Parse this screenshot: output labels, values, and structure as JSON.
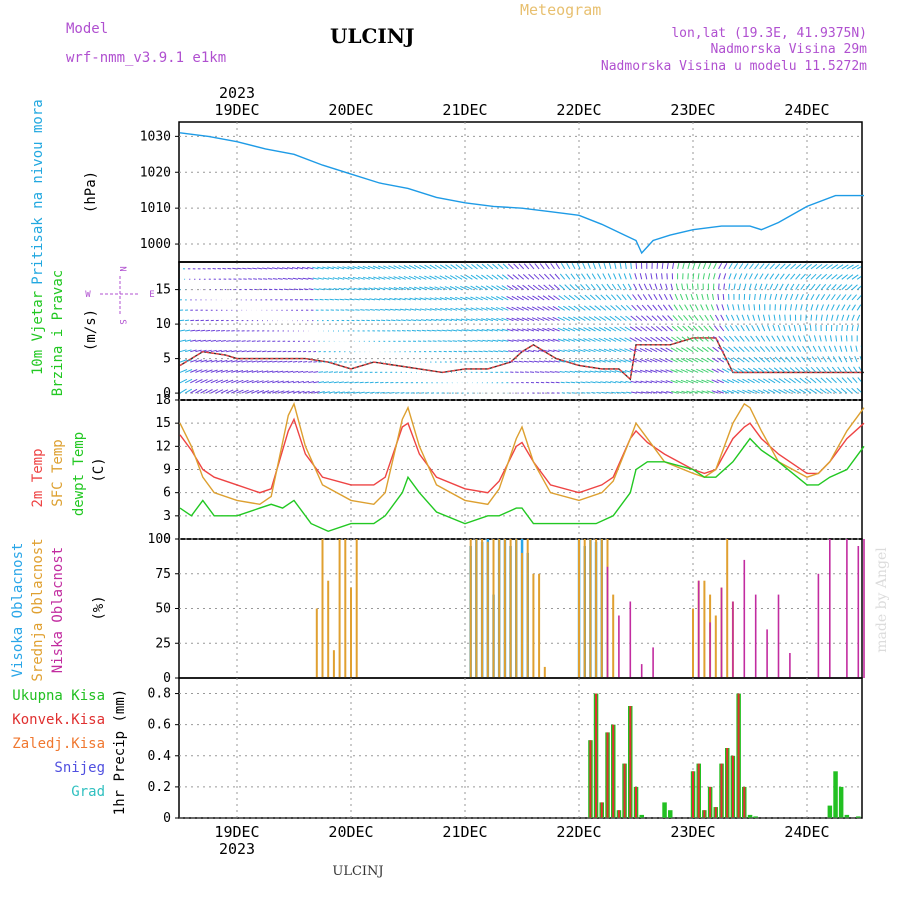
{
  "header": {
    "model_label": "Model",
    "model_name": "wrf-nmm_v3.9.1  e1km",
    "station": "ULCINJ",
    "meteogram": "Meteogram",
    "lonlat": "lon,lat (19.3E, 41.9375N)",
    "altitude": "Nadmorska Visina 29m",
    "model_altitude": "Nadmorska Visina u modelu 11.5272m"
  },
  "footer": {
    "station": "ULCINJ",
    "credit": "made by Angel"
  },
  "colors": {
    "pressure": "#1e9be6",
    "pressure_label": "#22a8e0",
    "t2m": "#ee4444",
    "tsfc": "#dda030",
    "dewp": "#22c822",
    "high_cloud": "#2aa6e8",
    "mid_cloud": "#e0a030",
    "low_cloud": "#c22ca0",
    "precip_total": "#22c022",
    "precip_conv": "#e03030",
    "precip_frz": "#f07830",
    "snow": "#5050e0",
    "hail": "#30c0c0",
    "model": "#b050d0",
    "meteogram": "#e8c070"
  },
  "time_axis": {
    "year": "2023",
    "days": [
      "19DEC",
      "20DEC",
      "21DEC",
      "22DEC",
      "23DEC",
      "24DEC"
    ]
  },
  "panel_labels": {
    "pressure": {
      "name": "Pritisak na nivou mora",
      "unit": "(hPa)"
    },
    "wind": {
      "name1": "10m Vjetar",
      "name2": "Brzina i Pravac",
      "unit": "(m/s)",
      "compass_n": "N",
      "compass_s": "S",
      "compass_w": "W",
      "compass_e": "E"
    },
    "temp": {
      "t2m": "2m Temp",
      "tsfc": "SFC Temp",
      "dewp": "dewpt Temp",
      "unit": "(C)"
    },
    "cloud": {
      "high": "Visoka Oblacnost",
      "mid": "Srednja Oblacnost",
      "low": "Niska Oblacnost",
      "unit": "(%)"
    },
    "precip": {
      "unit": "1hr Precip (mm)",
      "legend": [
        "Ukupna  Kisa",
        "Konvek.Kisa",
        "Zaledj.Kisa",
        "Snijeg",
        "Grad"
      ]
    }
  },
  "chart_data": [
    {
      "type": "line",
      "title": "Pritisak na nivou mora",
      "ylabel": "(hPa)",
      "ylim": [
        995,
        1034
      ],
      "yticks": [
        "1000",
        "1010",
        "1020",
        "1030"
      ],
      "x_unit": "days since 19DEC 00UTC",
      "grid": true,
      "series": [
        {
          "name": "Pritisak na nivou mora",
          "x": [
            -0.5,
            -0.25,
            0,
            0.25,
            0.5,
            0.75,
            1,
            1.25,
            1.5,
            1.75,
            2,
            2.25,
            2.5,
            2.75,
            3,
            3.2,
            3.4,
            3.5,
            3.55,
            3.65,
            3.8,
            4,
            4.25,
            4.5,
            4.6,
            4.75,
            5,
            5.25,
            5.5
          ],
          "y": [
            1031,
            1030,
            1028.5,
            1026.5,
            1025,
            1022,
            1019.5,
            1017,
            1015.5,
            1013,
            1011.5,
            1010.5,
            1010,
            1009,
            1008,
            1005.5,
            1002.5,
            1001,
            997.5,
            1001,
            1002.5,
            1004,
            1005,
            1005,
            1004,
            1006,
            1010.5,
            1013.5,
            1013.5
          ]
        }
      ]
    },
    {
      "type": "line",
      "title": "10m Vjetar Brzina i Pravac",
      "ylabel": "(m/s)",
      "ylim": [
        -1,
        19
      ],
      "yticks": [
        "0",
        "5",
        "10",
        "15"
      ],
      "grid": true,
      "series": [
        {
          "name": "Brzina",
          "x": [
            -0.5,
            -0.3,
            -0.1,
            0,
            0.2,
            0.4,
            0.6,
            0.8,
            1,
            1.2,
            1.4,
            1.6,
            1.8,
            2,
            2.2,
            2.4,
            2.5,
            2.6,
            2.8,
            3,
            3.2,
            3.35,
            3.45,
            3.5,
            3.6,
            3.8,
            4,
            4.2,
            4.35,
            4.5,
            4.7,
            4.9,
            5.1,
            5.3,
            5.5
          ],
          "y": [
            4,
            6,
            5.5,
            5,
            5,
            5,
            5,
            4.5,
            3.5,
            4.5,
            4,
            3.5,
            3,
            3.5,
            3.5,
            4.5,
            6,
            7,
            5,
            4,
            3.5,
            3.5,
            2,
            7,
            7,
            7,
            8,
            8,
            3,
            3,
            3,
            3,
            3,
            3,
            3
          ]
        }
      ]
    },
    {
      "type": "line",
      "title": "Temp",
      "ylabel": "(C)",
      "ylim": [
        0,
        18
      ],
      "yticks": [
        "0",
        "3",
        "6",
        "9",
        "12",
        "15",
        "18"
      ],
      "grid": true,
      "series": [
        {
          "name": "2m Temp",
          "x": [
            -0.5,
            -0.4,
            -0.3,
            -0.2,
            0,
            0.2,
            0.3,
            0.45,
            0.5,
            0.6,
            0.75,
            1,
            1.2,
            1.3,
            1.45,
            1.5,
            1.6,
            1.75,
            2,
            2.2,
            2.3,
            2.45,
            2.5,
            2.6,
            2.75,
            3,
            3.2,
            3.3,
            3.45,
            3.5,
            3.6,
            3.75,
            4,
            4.1,
            4.2,
            4.35,
            4.45,
            4.5,
            4.6,
            4.75,
            5,
            5.1,
            5.2,
            5.35,
            5.5
          ],
          "y": [
            13.5,
            11.5,
            9,
            8,
            7,
            6,
            6.5,
            14,
            15.5,
            11,
            8,
            7,
            7,
            8,
            14.5,
            15,
            11,
            8,
            6.5,
            6,
            7.5,
            12,
            12.5,
            10,
            7,
            6,
            7,
            8,
            13,
            14,
            12.5,
            11,
            9,
            8.5,
            9,
            13,
            14.5,
            15,
            13,
            11,
            8.5,
            8.5,
            10,
            13,
            15
          ]
        },
        {
          "name": "SFC Temp",
          "x": [
            -0.5,
            -0.4,
            -0.3,
            -0.2,
            0,
            0.2,
            0.3,
            0.45,
            0.5,
            0.6,
            0.75,
            1,
            1.2,
            1.3,
            1.45,
            1.5,
            1.6,
            1.75,
            2,
            2.2,
            2.3,
            2.45,
            2.5,
            2.6,
            2.75,
            3,
            3.2,
            3.3,
            3.45,
            3.5,
            3.6,
            3.75,
            4,
            4.1,
            4.2,
            4.35,
            4.45,
            4.5,
            4.6,
            4.75,
            5,
            5.1,
            5.2,
            5.35,
            5.5
          ],
          "y": [
            15,
            12,
            8,
            6,
            5,
            4.5,
            5.5,
            16,
            17.5,
            12,
            7,
            5,
            4.5,
            6,
            15.5,
            17,
            12,
            7,
            5,
            4.5,
            6.5,
            13,
            14.5,
            10,
            6,
            5,
            6,
            7.5,
            13,
            15,
            13,
            10,
            8.5,
            8,
            9,
            15,
            17.5,
            17,
            14,
            10,
            8,
            8.5,
            10,
            14,
            17
          ]
        },
        {
          "name": "dewpt Temp",
          "x": [
            -0.5,
            -0.4,
            -0.3,
            -0.2,
            0,
            0.2,
            0.3,
            0.4,
            0.5,
            0.65,
            0.8,
            1,
            1.2,
            1.3,
            1.45,
            1.5,
            1.6,
            1.75,
            2,
            2.2,
            2.3,
            2.45,
            2.5,
            2.6,
            2.75,
            3,
            3.15,
            3.3,
            3.45,
            3.5,
            3.6,
            3.75,
            4,
            4.1,
            4.2,
            4.35,
            4.45,
            4.5,
            4.6,
            4.75,
            5,
            5.1,
            5.2,
            5.35,
            5.5
          ],
          "y": [
            4,
            3,
            5,
            3,
            3,
            4,
            4.5,
            4,
            5,
            2,
            1,
            2,
            2,
            3,
            6,
            8,
            6,
            3.5,
            2,
            3,
            3,
            4,
            4,
            2,
            2,
            2,
            2,
            3,
            6,
            9,
            10,
            10,
            9,
            8,
            8,
            10,
            12,
            13,
            11.5,
            10,
            7,
            7,
            8,
            9,
            12
          ]
        }
      ]
    },
    {
      "type": "bar",
      "title": "Oblacnost",
      "ylabel": "(%)",
      "ylim": [
        0,
        100
      ],
      "yticks": [
        "0",
        "25",
        "50",
        "75",
        "100"
      ],
      "grid": true,
      "series": [
        {
          "name": "Visoka Oblacnost",
          "x": [
            2.05,
            2.1,
            2.15,
            2.2,
            2.25,
            2.3,
            2.35,
            2.4,
            2.45,
            2.5,
            2.55,
            3.0,
            3.05,
            3.1,
            3.15,
            3.2
          ],
          "values": [
            95,
            100,
            98,
            100,
            60,
            100,
            100,
            95,
            100,
            100,
            90,
            100,
            95,
            100,
            98,
            100
          ]
        },
        {
          "name": "Srednja Oblacnost",
          "x": [
            0.7,
            0.75,
            0.8,
            0.85,
            0.9,
            0.95,
            1.0,
            1.05,
            2.05,
            2.1,
            2.15,
            2.2,
            2.25,
            2.3,
            2.35,
            2.4,
            2.45,
            2.5,
            2.55,
            2.6,
            2.65,
            2.7,
            3.0,
            3.05,
            3.1,
            3.15,
            3.2,
            3.25,
            3.3,
            4.0,
            4.05,
            4.1,
            4.15,
            4.2,
            4.25,
            4.3,
            4.35
          ],
          "values": [
            50,
            100,
            70,
            20,
            100,
            100,
            65,
            100,
            100,
            100,
            100,
            98,
            100,
            100,
            100,
            100,
            100,
            90,
            100,
            75,
            75,
            8,
            100,
            100,
            100,
            100,
            100,
            100,
            60,
            50,
            70,
            70,
            60,
            45,
            65,
            100,
            55
          ]
        },
        {
          "name": "Niska Oblacnost",
          "x": [
            3.25,
            3.35,
            3.45,
            3.55,
            3.65,
            4.05,
            4.15,
            4.25,
            4.35,
            4.45,
            4.55,
            4.65,
            4.75,
            4.85,
            5.1,
            5.2,
            5.35,
            5.45,
            5.5
          ],
          "values": [
            80,
            45,
            55,
            10,
            22,
            70,
            40,
            65,
            55,
            85,
            60,
            35,
            60,
            18,
            75,
            100,
            100,
            95,
            100
          ]
        }
      ]
    },
    {
      "type": "bar",
      "title": "1hr Precip",
      "ylabel": "1hr Precip (mm)",
      "ylim": [
        0,
        0.9
      ],
      "yticks": [
        "0",
        "0.2",
        "0.4",
        "0.6",
        "0.8"
      ],
      "grid": true,
      "series": [
        {
          "name": "Ukupna  Kisa",
          "x": [
            3.1,
            3.15,
            3.2,
            3.25,
            3.3,
            3.35,
            3.4,
            3.45,
            3.5,
            3.55,
            3.75,
            3.8,
            4.0,
            4.05,
            4.1,
            4.15,
            4.2,
            4.25,
            4.3,
            4.35,
            4.4,
            4.45,
            4.5,
            4.55,
            5.2,
            5.25,
            5.3,
            5.35,
            5.45
          ],
          "values": [
            0.5,
            0.8,
            0.1,
            0.55,
            0.6,
            0.05,
            0.35,
            0.72,
            0.2,
            0.02,
            0.1,
            0.05,
            0.3,
            0.35,
            0.05,
            0.2,
            0.07,
            0.35,
            0.45,
            0.4,
            0.8,
            0.2,
            0.02,
            0.01,
            0.08,
            0.3,
            0.2,
            0.02,
            0.01
          ]
        },
        {
          "name": "Konvek.Kisa",
          "x": [
            3.1,
            3.15,
            3.2,
            3.25,
            3.3,
            3.35,
            3.4,
            3.45,
            3.5,
            4.0,
            4.05,
            4.1,
            4.15,
            4.2,
            4.25,
            4.3,
            4.35,
            4.4,
            4.45
          ],
          "values": [
            0.5,
            0.8,
            0.1,
            0.55,
            0.6,
            0.05,
            0.35,
            0.72,
            0.2,
            0.3,
            0.35,
            0.05,
            0.2,
            0.07,
            0.35,
            0.45,
            0.4,
            0.8,
            0.2
          ]
        }
      ]
    }
  ]
}
